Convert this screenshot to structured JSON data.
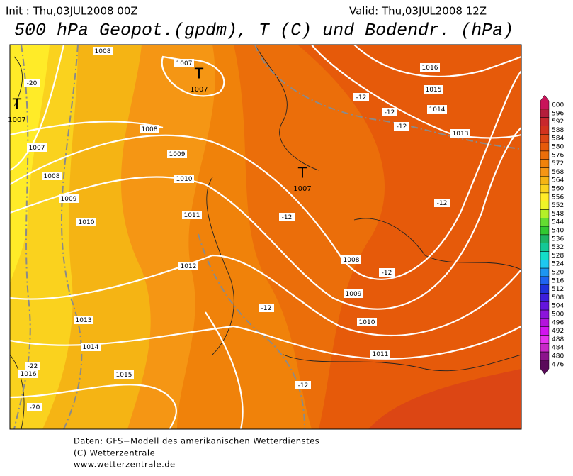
{
  "header": {
    "init": "Init : Thu,03JUL2008 00Z",
    "valid": "Valid: Thu,03JUL2008 12Z",
    "title": "500 hPa Geopot.(gpdm), T (C) und Bodendr. (hPa)"
  },
  "map": {
    "isobar_labels": [
      "1008",
      "1007",
      "1016",
      "1015",
      "1014",
      "1013",
      "1008",
      "1007",
      "1009",
      "1010",
      "1008",
      "1009",
      "1010",
      "1011",
      "1012",
      "1008",
      "1009",
      "1010",
      "1011",
      "1013",
      "1014",
      "1015",
      "1016"
    ],
    "lows": [
      {
        "symbol": "T",
        "pressure": "1007"
      },
      {
        "symbol": "T",
        "pressure": "1007"
      },
      {
        "symbol": "T",
        "pressure": "1007"
      }
    ],
    "temperature_labels": [
      "-20",
      "-12",
      "-12",
      "-12",
      "-12",
      "-12",
      "-12",
      "-12",
      "-12",
      "-22",
      "-20"
    ]
  },
  "legend": {
    "labels": [
      600,
      596,
      592,
      588,
      584,
      580,
      576,
      572,
      568,
      564,
      560,
      556,
      552,
      548,
      544,
      540,
      536,
      532,
      528,
      524,
      520,
      516,
      512,
      508,
      504,
      500,
      496,
      492,
      488,
      484,
      480,
      476
    ],
    "colors": [
      "#c8145a",
      "#b41e3c",
      "#c8282d",
      "#d2321e",
      "#dc4614",
      "#e65a0a",
      "#eb6e0a",
      "#f0820a",
      "#f59614",
      "#f5b414",
      "#fad21e",
      "#ffeb28",
      "#f0f528",
      "#b4f028",
      "#64dc32",
      "#32c832",
      "#1eb464",
      "#14c896",
      "#14dcc8",
      "#1ec8f0",
      "#1e96f0",
      "#1e64f0",
      "#1e32dc",
      "#3c1edc",
      "#6414dc",
      "#8c14dc",
      "#b414dc",
      "#d214f0",
      "#e632f0",
      "#c828c8",
      "#8c148c",
      "#5a0a5a"
    ]
  },
  "footer": {
    "lines": [
      "Daten: GFS−Modell des amerikanischen Wetterdienstes",
      "(C) Wetterzentrale",
      "www.wetterzentrale.de"
    ]
  }
}
